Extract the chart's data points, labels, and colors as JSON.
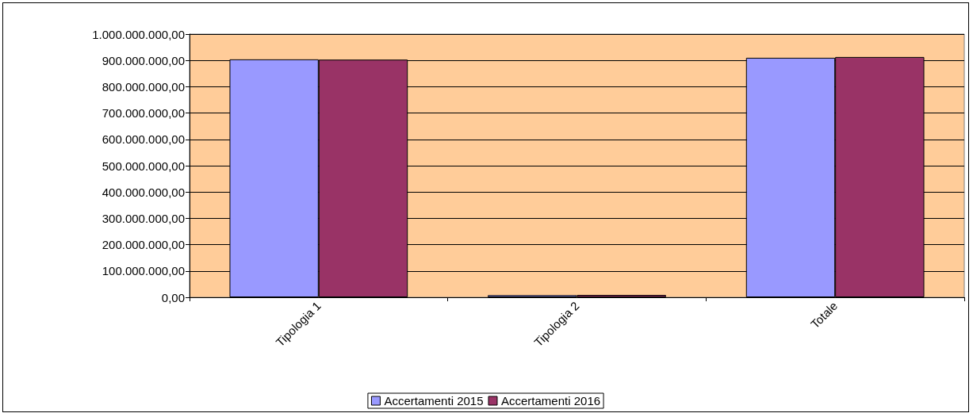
{
  "chart_data": {
    "type": "bar",
    "categories": [
      "Tipologia 1",
      "Tipologia 2",
      "Totale"
    ],
    "series": [
      {
        "name": "Accertamenti 2015",
        "color": "#9999ff",
        "values": [
          904000000,
          8000000,
          910000000
        ]
      },
      {
        "name": "Accertamenti 2016",
        "color": "#993366",
        "values": [
          903000000,
          9000000,
          913000000
        ]
      }
    ],
    "ylim": [
      0,
      1000000000
    ],
    "yticks": [
      {
        "value": 0,
        "label": "0,00"
      },
      {
        "value": 100000000,
        "label": "100.000.000,00"
      },
      {
        "value": 200000000,
        "label": "200.000.000,00"
      },
      {
        "value": 300000000,
        "label": "300.000.000,00"
      },
      {
        "value": 400000000,
        "label": "400.000.000,00"
      },
      {
        "value": 500000000,
        "label": "500.000.000,00"
      },
      {
        "value": 600000000,
        "label": "600.000.000,00"
      },
      {
        "value": 700000000,
        "label": "700.000.000,00"
      },
      {
        "value": 800000000,
        "label": "800.000.000,00"
      },
      {
        "value": 900000000,
        "label": "900.000.000,00"
      },
      {
        "value": 1000000000,
        "label": "1.000.000.000,00"
      }
    ],
    "grid": "y",
    "legend": "bottom"
  }
}
